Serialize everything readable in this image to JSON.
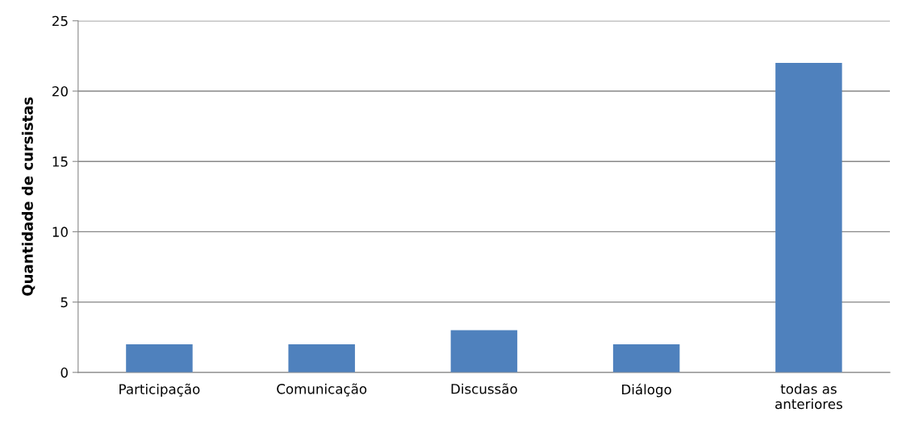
{
  "chart_data": {
    "type": "bar",
    "ylabel": "Quantidade de cursistas",
    "categories": [
      "Participação",
      "Comunicação",
      "Discussão",
      "Diálogo",
      "todas as\nanteriores"
    ],
    "values": [
      2,
      2,
      3,
      2,
      22
    ],
    "color": "#4f81bd",
    "ylim": [
      0,
      25
    ],
    "yticks": [
      0,
      5,
      10,
      15,
      20,
      25
    ],
    "grid": "y"
  }
}
